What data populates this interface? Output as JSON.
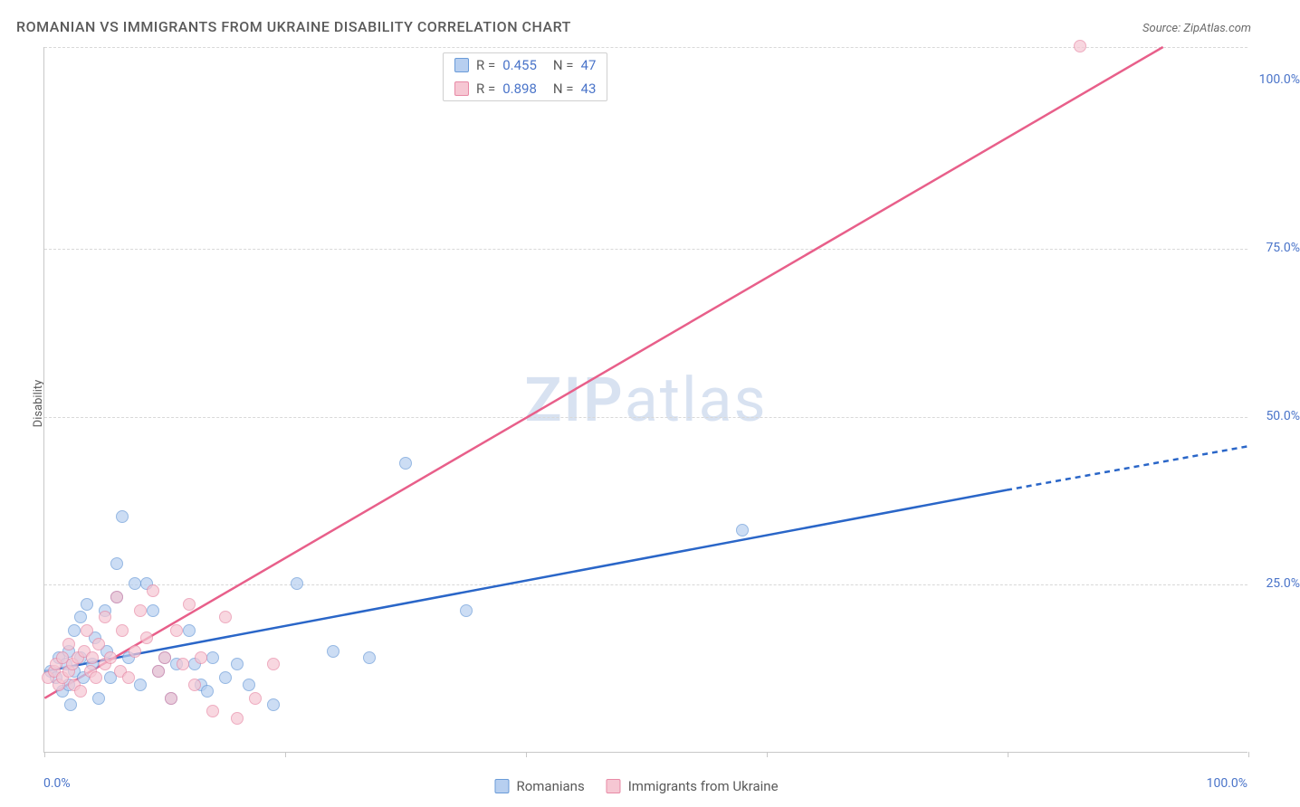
{
  "title": "ROMANIAN VS IMMIGRANTS FROM UKRAINE DISABILITY CORRELATION CHART",
  "source": "Source: ZipAtlas.com",
  "y_axis_label": "Disability",
  "watermark": {
    "part1": "ZIP",
    "part2": "atlas"
  },
  "chart": {
    "type": "scatter",
    "xlim": [
      0,
      100
    ],
    "ylim": [
      0,
      105
    ],
    "x_ticks": [
      0,
      20,
      40,
      60,
      80,
      100
    ],
    "y_gridlines": [
      25,
      50,
      75,
      105
    ],
    "x_label_min": "0.0%",
    "x_label_max": "100.0%",
    "y_labels": [
      {
        "v": 25,
        "text": "25.0%"
      },
      {
        "v": 50,
        "text": "50.0%"
      },
      {
        "v": 75,
        "text": "75.0%"
      },
      {
        "v": 100,
        "text": "100.0%"
      }
    ],
    "background_color": "#ffffff",
    "grid_color": "#d8d8d8",
    "axis_value_color": "#4a74c9",
    "series": [
      {
        "id": "romanians",
        "label": "Romanians",
        "marker_fill": "#b7cff0",
        "marker_stroke": "#6a9bd8",
        "marker_opacity": 0.7,
        "marker_radius": 7,
        "points": [
          [
            0.5,
            12
          ],
          [
            1,
            11
          ],
          [
            1.2,
            14
          ],
          [
            1.5,
            9
          ],
          [
            1.8,
            13
          ],
          [
            2,
            15
          ],
          [
            2,
            10
          ],
          [
            2.2,
            7
          ],
          [
            2.5,
            12
          ],
          [
            2.5,
            18
          ],
          [
            3,
            20
          ],
          [
            3,
            14
          ],
          [
            3.2,
            11
          ],
          [
            3.5,
            22
          ],
          [
            4,
            13
          ],
          [
            4.2,
            17
          ],
          [
            4.5,
            8
          ],
          [
            5,
            21
          ],
          [
            5.2,
            15
          ],
          [
            5.5,
            11
          ],
          [
            6,
            23
          ],
          [
            6,
            28
          ],
          [
            6.5,
            35
          ],
          [
            7,
            14
          ],
          [
            7.5,
            25
          ],
          [
            8,
            10
          ],
          [
            8.5,
            25
          ],
          [
            9,
            21
          ],
          [
            9.5,
            12
          ],
          [
            10,
            14
          ],
          [
            10.5,
            8
          ],
          [
            11,
            13
          ],
          [
            12,
            18
          ],
          [
            12.5,
            13
          ],
          [
            13,
            10
          ],
          [
            13.5,
            9
          ],
          [
            14,
            14
          ],
          [
            15,
            11
          ],
          [
            16,
            13
          ],
          [
            17,
            10
          ],
          [
            19,
            7
          ],
          [
            21,
            25
          ],
          [
            24,
            15
          ],
          [
            27,
            14
          ],
          [
            30,
            43
          ],
          [
            35,
            21
          ],
          [
            58,
            33
          ]
        ],
        "trend": {
          "color": "#2a66c8",
          "stroke_width": 2.5,
          "x1": 0,
          "y1": 12,
          "x2": 80,
          "y2": 39,
          "dash_x1": 80,
          "dash_y1": 39,
          "dash_x2": 100,
          "dash_y2": 45.5
        },
        "R": "0.455",
        "N": "47"
      },
      {
        "id": "ukraine",
        "label": "Immigrants from Ukraine",
        "marker_fill": "#f6c7d3",
        "marker_stroke": "#e88aa6",
        "marker_opacity": 0.7,
        "marker_radius": 7,
        "points": [
          [
            0.3,
            11
          ],
          [
            0.8,
            12
          ],
          [
            1,
            13
          ],
          [
            1.2,
            10
          ],
          [
            1.5,
            14
          ],
          [
            1.5,
            11
          ],
          [
            2,
            12
          ],
          [
            2,
            16
          ],
          [
            2.3,
            13
          ],
          [
            2.5,
            10
          ],
          [
            2.8,
            14
          ],
          [
            3,
            9
          ],
          [
            3.3,
            15
          ],
          [
            3.5,
            18
          ],
          [
            3.8,
            12
          ],
          [
            4,
            14
          ],
          [
            4.3,
            11
          ],
          [
            4.5,
            16
          ],
          [
            5,
            13
          ],
          [
            5,
            20
          ],
          [
            5.5,
            14
          ],
          [
            6,
            23
          ],
          [
            6.3,
            12
          ],
          [
            6.5,
            18
          ],
          [
            7,
            11
          ],
          [
            7.5,
            15
          ],
          [
            8,
            21
          ],
          [
            8.5,
            17
          ],
          [
            9,
            24
          ],
          [
            9.5,
            12
          ],
          [
            10,
            14
          ],
          [
            10.5,
            8
          ],
          [
            11,
            18
          ],
          [
            11.5,
            13
          ],
          [
            12,
            22
          ],
          [
            12.5,
            10
          ],
          [
            13,
            14
          ],
          [
            14,
            6
          ],
          [
            15,
            20
          ],
          [
            16,
            5
          ],
          [
            17.5,
            8
          ],
          [
            19,
            13
          ],
          [
            86,
            105
          ]
        ],
        "trend": {
          "color": "#e85f8a",
          "stroke_width": 2.5,
          "x1": 0,
          "y1": 8,
          "x2": 93,
          "y2": 105,
          "dash_x1": 93,
          "dash_y1": 105,
          "dash_x2": 93,
          "dash_y2": 105
        },
        "R": "0.898",
        "N": "43"
      }
    ],
    "legend_stats": {
      "r_label": "R =",
      "n_label": "N ="
    }
  }
}
